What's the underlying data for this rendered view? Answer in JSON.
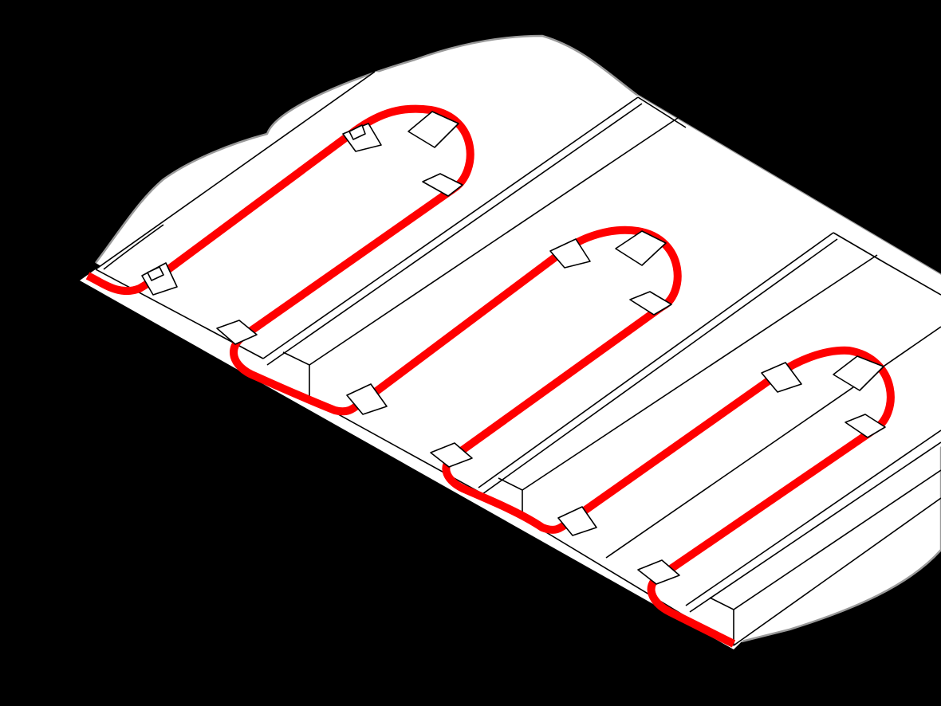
{
  "colors": {
    "background": "#000000",
    "panel_fill": "#ffffff",
    "panel_outline": "#000000",
    "subfloor_outline": "#9a9a9a",
    "cable": "#ff0000",
    "clip_fill": "#ffffff",
    "clip_outline": "#000000"
  },
  "diagram": {
    "panel_count": 3,
    "cable_loops": 3,
    "clips_per_loop": 5
  }
}
